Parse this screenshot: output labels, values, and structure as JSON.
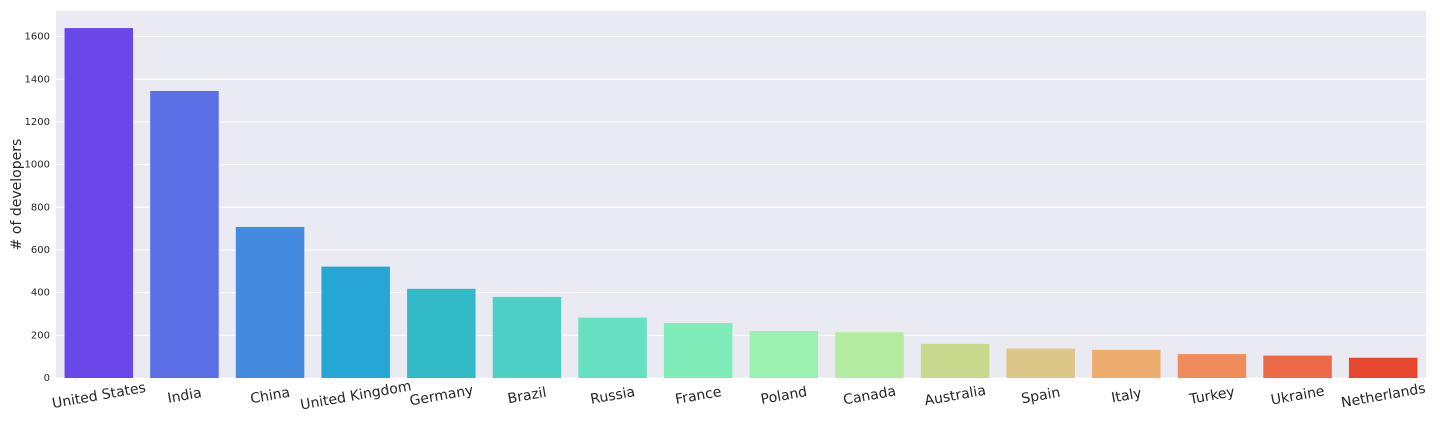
{
  "chart_data": {
    "type": "bar",
    "title": "",
    "xlabel": "",
    "ylabel": "# of developers",
    "ylim": [
      0,
      1720
    ],
    "yticks": [
      0,
      200,
      400,
      600,
      800,
      1000,
      1200,
      1400,
      1600
    ],
    "grid": true,
    "legend": "none",
    "background_color": "#eaeaf2",
    "categories": [
      "United States",
      "India",
      "China",
      "United Kingdom",
      "Germany",
      "Brazil",
      "Russia",
      "France",
      "Poland",
      "Canada",
      "Australia",
      "Spain",
      "Italy",
      "Turkey",
      "Ukraine",
      "Netherlands"
    ],
    "values": [
      1640,
      1345,
      708,
      522,
      418,
      380,
      283,
      258,
      220,
      215,
      160,
      138,
      132,
      112,
      105,
      95
    ],
    "colors": [
      "#6a47e8",
      "#5b6ee6",
      "#448be0",
      "#26a6d5",
      "#33bac9",
      "#4ecfc5",
      "#66e0c0",
      "#80ecba",
      "#9cf1b0",
      "#b3eca0",
      "#c8d98e",
      "#dcc788",
      "#eeac6e",
      "#ef8c5b",
      "#ec6a48",
      "#e8472f"
    ]
  }
}
